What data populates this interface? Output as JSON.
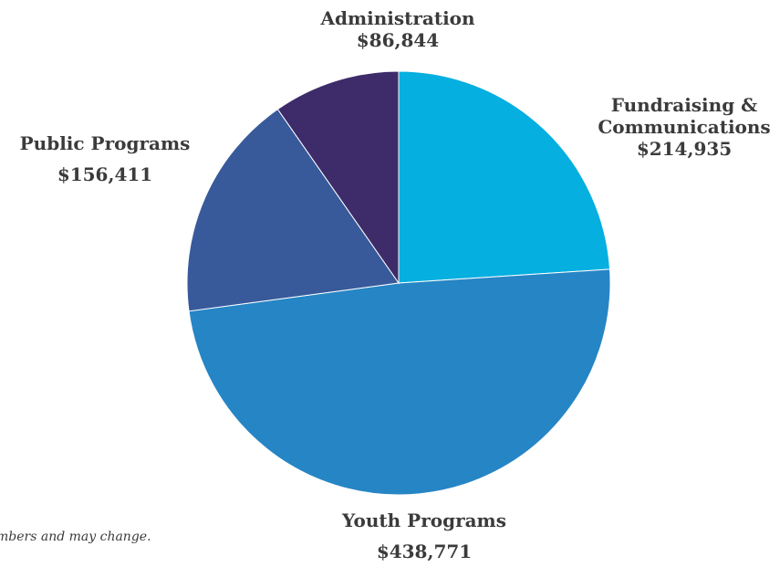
{
  "chart_data": {
    "type": "pie",
    "slices": [
      {
        "name": "Fundraising & Communications",
        "value": 214935,
        "value_label": "$214,935",
        "color": "#05afe0"
      },
      {
        "name": "Youth Programs",
        "value": 438771,
        "value_label": "$438,771",
        "color": "#2685c5"
      },
      {
        "name": "Public Programs",
        "value": 156411,
        "value_label": "$156,411",
        "color": "#385a9b"
      },
      {
        "name": "Administration",
        "value": 86844,
        "value_label": "$86,844",
        "color": "#3d2c69"
      }
    ],
    "label_lines": {
      "fundraising_line1": "Fundraising &",
      "fundraising_line2": "Communications"
    },
    "start_angle": "12 o'clock",
    "direction": "clockwise"
  },
  "footnote": "mbers and may change."
}
